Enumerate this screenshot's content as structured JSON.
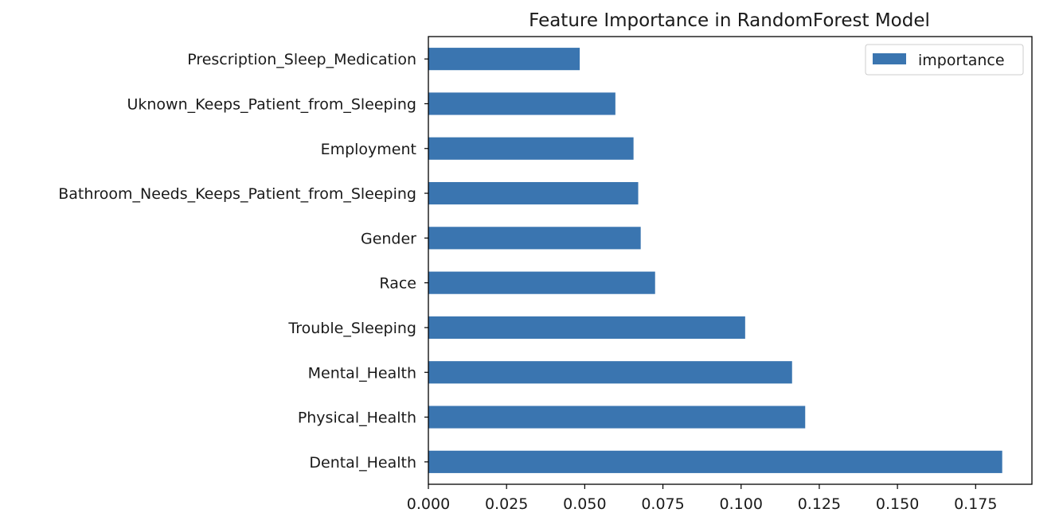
{
  "chart_data": {
    "type": "bar",
    "orientation": "horizontal",
    "title": "Feature Importance in RandomForest Model",
    "xlabel": "",
    "ylabel": "",
    "xlim": [
      0,
      0.193
    ],
    "x_ticks": [
      "0.000",
      "0.025",
      "0.050",
      "0.075",
      "0.100",
      "0.125",
      "0.150",
      "0.175"
    ],
    "x_tick_values": [
      0,
      0.025,
      0.05,
      0.075,
      0.1,
      0.125,
      0.15,
      0.175
    ],
    "categories": [
      "Dental_Health",
      "Physical_Health",
      "Mental_Health",
      "Trouble_Sleeping",
      "Race",
      "Gender",
      "Bathroom_Needs_Keeps_Patient_from_Sleeping",
      "Employment",
      "Uknown_Keeps_Patient_from_Sleeping",
      "Prescription_Sleep_Medication"
    ],
    "series": [
      {
        "name": "importance",
        "color": "#3a75b0",
        "values": [
          0.1835,
          0.1205,
          0.1163,
          0.1013,
          0.0725,
          0.0679,
          0.0671,
          0.0656,
          0.0598,
          0.0484
        ]
      }
    ],
    "legend": {
      "position": "top-right",
      "entries": [
        "importance"
      ]
    },
    "grid": false
  }
}
